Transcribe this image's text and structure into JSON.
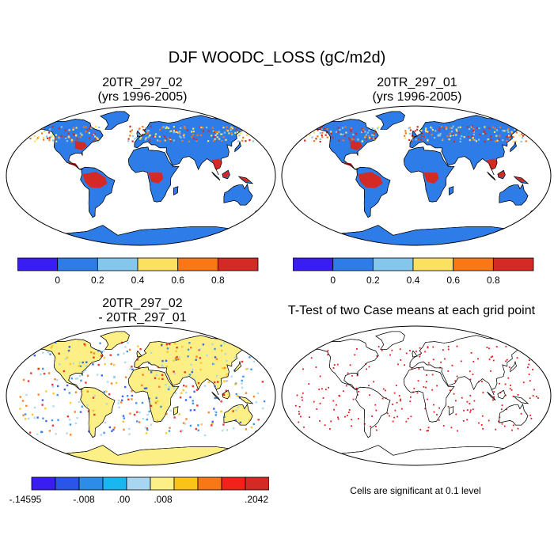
{
  "title": "DJF WOODC_LOSS (gC/m2d)",
  "panels": [
    {
      "id": "case1",
      "title_lines": [
        "20TR_297_02",
        "(yrs 1996-2005)"
      ]
    },
    {
      "id": "case2",
      "title_lines": [
        "20TR_297_01",
        "(yrs 1996-2005)"
      ]
    },
    {
      "id": "diff",
      "title_lines": [
        "20TR_297_02",
        "- 20TR_297_01"
      ]
    },
    {
      "id": "ttest",
      "title_lines": [
        "T-Test of two Case means at each grid point"
      ]
    }
  ],
  "colorbar_case": {
    "colors": [
      "#3a1df0",
      "#2d7ce8",
      "#85c6ec",
      "#fbe15f",
      "#f97714",
      "#d42a25"
    ],
    "labels": [
      "0",
      "0.2",
      "0.4",
      "0.6",
      "0.8"
    ]
  },
  "colorbar_diff": {
    "colors": [
      "#3a1df0",
      "#2a55e8",
      "#2d8ce8",
      "#1ab6f2",
      "#a8d6f0",
      "#fbef86",
      "#fbc21a",
      "#f97714",
      "#f0221a",
      "#d42a25"
    ],
    "labels": [
      "-.14595",
      "-.008",
      ".00",
      ".008",
      ".2042"
    ]
  },
  "ttest_note": "Cells are significant at 0.1 level",
  "colors": {
    "land_blue": "#2d7ce8",
    "ocean": "#ffffff",
    "hot_red": "#d42a25",
    "diff_land": "#fbef86",
    "sig_dot": "#e8141c"
  }
}
